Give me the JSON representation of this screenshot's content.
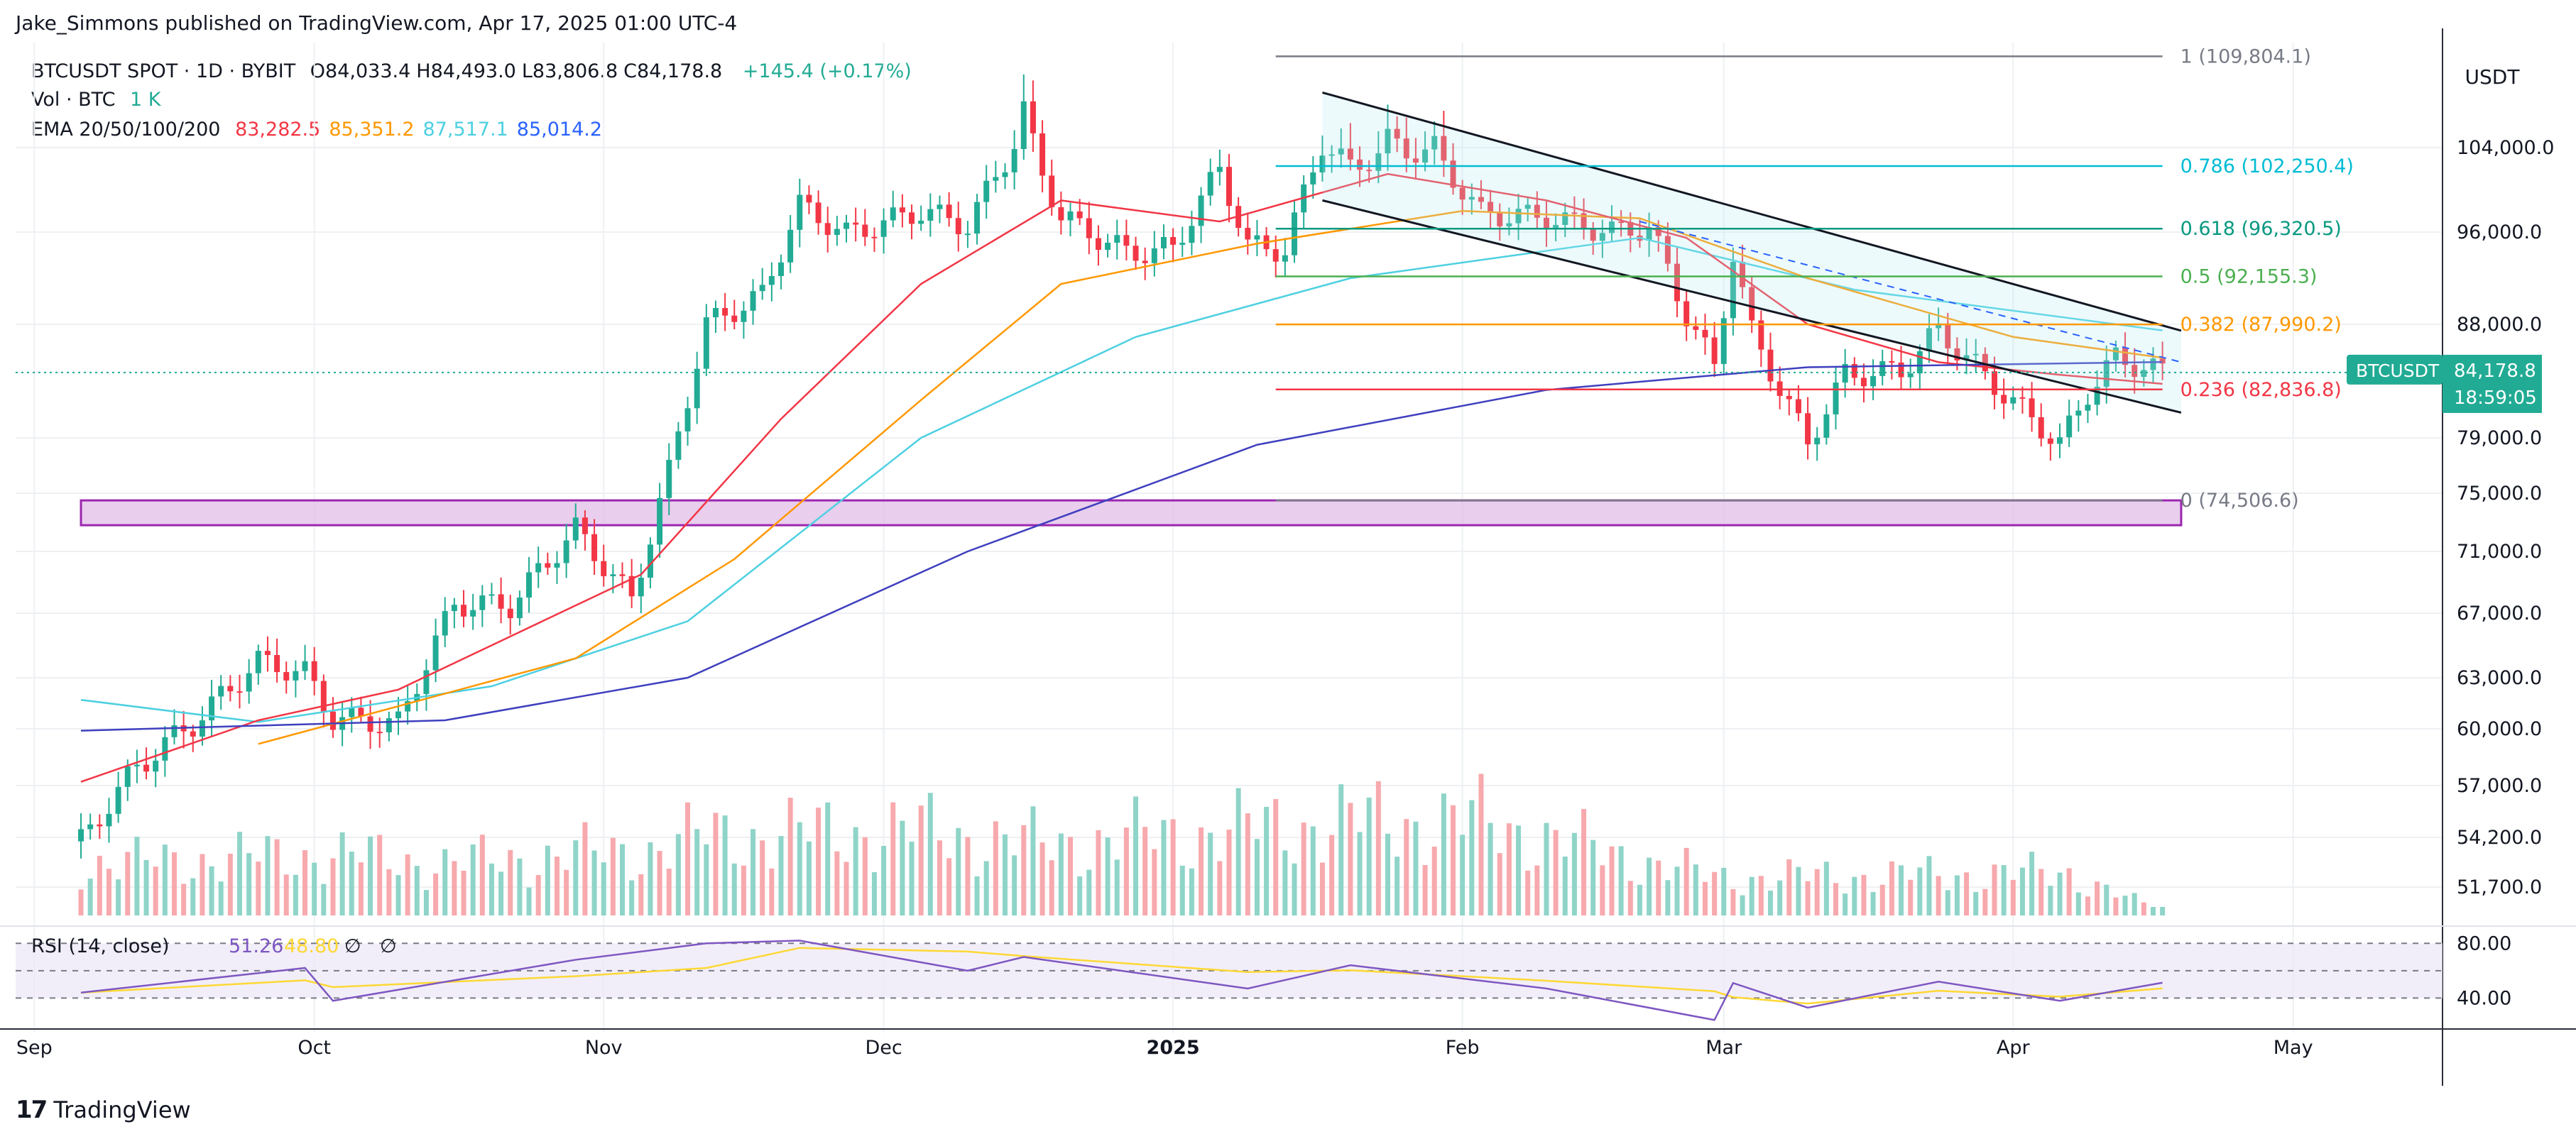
{
  "publisher": "Jake_Simmons published on TradingView.com, Apr 17, 2025 01:00 UTC-4",
  "brand": "TradingView",
  "header": {
    "symbol": "BTCUSDT SPOT · 1D · BYBIT",
    "ohlc": [
      {
        "label": "O",
        "value": "84,033.4"
      },
      {
        "label": "H",
        "value": "84,493.0"
      },
      {
        "label": "L",
        "value": "83,806.8"
      },
      {
        "label": "C",
        "value": "84,178.8"
      }
    ],
    "change": "+145.4 (+0.17%)",
    "volume_label": "Vol · BTC",
    "volume_value": "1 K",
    "ema_label": "EMA 20/50/100/200",
    "ema_values": [
      {
        "value": "83,282.5",
        "color": "#f23645"
      },
      {
        "value": "85,351.2",
        "color": "#ff9800"
      },
      {
        "value": "87,517.1",
        "color": "#4dd0e1"
      },
      {
        "value": "85,014.2",
        "color": "#2962ff"
      }
    ]
  },
  "currency": "USDT",
  "price_tag": {
    "symbol": "BTCUSDT",
    "price": "84,178.8",
    "countdown": "18:59:05",
    "color": "#22ab94"
  },
  "rsi": {
    "label": "RSI (14, close)",
    "value": "51.26",
    "ma_value": "48.80",
    "extra": [
      "∅",
      "∅"
    ],
    "levels": [
      "80.00",
      "40.00"
    ]
  },
  "colors": {
    "up": "#22ab94",
    "down": "#f23645",
    "up_vol": "#8fd4c8",
    "down_vol": "#f7a9ad",
    "grid": "#eef0f3"
  },
  "chart_data": {
    "type": "candlestick",
    "title": "BTCUSDT SPOT · 1D · BYBIT",
    "y_axis_ticks": [
      "104,000.0",
      "96,000.0",
      "88,000.0",
      "79,000.0",
      "75,000.0",
      "71,000.0",
      "67,000.0",
      "63,000.0",
      "60,000.0",
      "57,000.0",
      "54,200.0",
      "51,700.0"
    ],
    "y_tick_values": [
      104000,
      96000,
      88000,
      79000,
      75000,
      71000,
      67000,
      63000,
      60000,
      57000,
      54200,
      51700
    ],
    "x_axis_ticks": [
      "Sep",
      "Oct",
      "Nov",
      "Dec",
      "2025",
      "Feb",
      "Mar",
      "Apr",
      "May"
    ],
    "x_tick_dates": [
      "2024-09-01",
      "2024-10-01",
      "2024-11-01",
      "2024-12-01",
      "2025-01-01",
      "2025-02-01",
      "2025-03-01",
      "2025-04-01",
      "2025-05-01"
    ],
    "date_range": [
      "2024-09-06",
      "2025-04-17"
    ],
    "closes": [
      {
        "date": "2024-09-06",
        "close": 54000
      },
      {
        "date": "2024-09-12",
        "close": 58000
      },
      {
        "date": "2024-09-18",
        "close": 60300
      },
      {
        "date": "2024-09-25",
        "close": 64000
      },
      {
        "date": "2024-09-30",
        "close": 63300
      },
      {
        "date": "2024-10-03",
        "close": 60600
      },
      {
        "date": "2024-10-10",
        "close": 60300
      },
      {
        "date": "2024-10-16",
        "close": 67600
      },
      {
        "date": "2024-10-22",
        "close": 67500
      },
      {
        "date": "2024-10-29",
        "close": 72500
      },
      {
        "date": "2024-11-04",
        "close": 67800
      },
      {
        "date": "2024-11-08",
        "close": 76500
      },
      {
        "date": "2024-11-12",
        "close": 88000
      },
      {
        "date": "2024-11-18",
        "close": 90500
      },
      {
        "date": "2024-11-22",
        "close": 98500
      },
      {
        "date": "2024-11-27",
        "close": 95800
      },
      {
        "date": "2024-12-05",
        "close": 98000
      },
      {
        "date": "2024-12-10",
        "close": 96600
      },
      {
        "date": "2024-12-16",
        "close": 106000
      },
      {
        "date": "2024-12-20",
        "close": 97400
      },
      {
        "date": "2024-12-27",
        "close": 94200
      },
      {
        "date": "2025-01-01",
        "close": 94500
      },
      {
        "date": "2025-01-06",
        "close": 102000
      },
      {
        "date": "2025-01-09",
        "close": 94700
      },
      {
        "date": "2025-01-13",
        "close": 94500
      },
      {
        "date": "2025-01-17",
        "close": 104500
      },
      {
        "date": "2025-01-20",
        "close": 102000
      },
      {
        "date": "2025-01-24",
        "close": 104000
      },
      {
        "date": "2025-01-29",
        "close": 103500
      },
      {
        "date": "2025-02-03",
        "close": 97700
      },
      {
        "date": "2025-02-10",
        "close": 97400
      },
      {
        "date": "2025-02-17",
        "close": 96000
      },
      {
        "date": "2025-02-21",
        "close": 96500
      },
      {
        "date": "2025-02-25",
        "close": 88800
      },
      {
        "date": "2025-02-28",
        "close": 84500
      },
      {
        "date": "2025-03-02",
        "close": 94300
      },
      {
        "date": "2025-03-04",
        "close": 87300
      },
      {
        "date": "2025-03-10",
        "close": 78600
      },
      {
        "date": "2025-03-14",
        "close": 84000
      },
      {
        "date": "2025-03-20",
        "close": 84300
      },
      {
        "date": "2025-03-24",
        "close": 87500
      },
      {
        "date": "2025-03-31",
        "close": 82500
      },
      {
        "date": "2025-04-06",
        "close": 78500
      },
      {
        "date": "2025-04-09",
        "close": 82600
      },
      {
        "date": "2025-04-12",
        "close": 85300
      },
      {
        "date": "2025-04-17",
        "close": 84178.8
      }
    ],
    "ema_20": [
      {
        "date": "2024-09-06",
        "value": 57200
      },
      {
        "date": "2024-09-25",
        "value": 60500
      },
      {
        "date": "2024-10-10",
        "value": 62300
      },
      {
        "date": "2024-10-29",
        "value": 67500
      },
      {
        "date": "2024-11-05",
        "value": 69500
      },
      {
        "date": "2024-11-20",
        "value": 80500
      },
      {
        "date": "2024-12-05",
        "value": 91500
      },
      {
        "date": "2024-12-20",
        "value": 99000
      },
      {
        "date": "2025-01-06",
        "value": 97000
      },
      {
        "date": "2025-01-24",
        "value": 101500
      },
      {
        "date": "2025-02-10",
        "value": 99000
      },
      {
        "date": "2025-02-25",
        "value": 95500
      },
      {
        "date": "2025-03-10",
        "value": 88000
      },
      {
        "date": "2025-03-24",
        "value": 85000
      },
      {
        "date": "2025-04-06",
        "value": 84000
      },
      {
        "date": "2025-04-17",
        "value": 83282.5
      }
    ],
    "ema_50": [
      {
        "date": "2024-09-25",
        "value": 59200
      },
      {
        "date": "2024-10-29",
        "value": 64200
      },
      {
        "date": "2024-11-15",
        "value": 70500
      },
      {
        "date": "2024-12-05",
        "value": 82000
      },
      {
        "date": "2024-12-20",
        "value": 91500
      },
      {
        "date": "2025-01-10",
        "value": 95000
      },
      {
        "date": "2025-02-01",
        "value": 98000
      },
      {
        "date": "2025-02-20",
        "value": 97300
      },
      {
        "date": "2025-03-10",
        "value": 92000
      },
      {
        "date": "2025-04-01",
        "value": 87000
      },
      {
        "date": "2025-04-17",
        "value": 85351.2
      }
    ],
    "ema_100": [
      {
        "date": "2024-09-06",
        "value": 61700
      },
      {
        "date": "2024-09-25",
        "value": 60400
      },
      {
        "date": "2024-10-20",
        "value": 62500
      },
      {
        "date": "2024-11-10",
        "value": 66500
      },
      {
        "date": "2024-12-05",
        "value": 79000
      },
      {
        "date": "2024-12-28",
        "value": 87000
      },
      {
        "date": "2025-01-20",
        "value": 92000
      },
      {
        "date": "2025-02-20",
        "value": 95500
      },
      {
        "date": "2025-03-15",
        "value": 91000
      },
      {
        "date": "2025-04-17",
        "value": 87517.1
      }
    ],
    "ema_200": [
      {
        "date": "2024-09-06",
        "value": 59900
      },
      {
        "date": "2024-10-15",
        "value": 60500
      },
      {
        "date": "2024-11-10",
        "value": 63000
      },
      {
        "date": "2024-12-10",
        "value": 71000
      },
      {
        "date": "2025-01-10",
        "value": 78500
      },
      {
        "date": "2025-02-10",
        "value": 82800
      },
      {
        "date": "2025-03-10",
        "value": 84600
      },
      {
        "date": "2025-04-17",
        "value": 85014.2
      }
    ],
    "fibonacci": {
      "start_date": "2025-01-12",
      "end_date": "2025-04-17",
      "levels": [
        {
          "ratio": "1",
          "price": 109804.1,
          "label": "1 (109,804.1)",
          "color": "#787b86"
        },
        {
          "ratio": "0.786",
          "price": 102250.4,
          "label": "0.786 (102,250.4)",
          "color": "#00bcd4"
        },
        {
          "ratio": "0.618",
          "price": 96320.5,
          "label": "0.618 (96,320.5)",
          "color": "#089981"
        },
        {
          "ratio": "0.5",
          "price": 92155.3,
          "label": "0.5 (92,155.3)",
          "color": "#4caf50"
        },
        {
          "ratio": "0.382",
          "price": 87990.2,
          "label": "0.382 (87,990.2)",
          "color": "#ff9800"
        },
        {
          "ratio": "0.236",
          "price": 82836.8,
          "label": "0.236 (82,836.8)",
          "color": "#f23645"
        },
        {
          "ratio": "0",
          "price": 74506.6,
          "label": "0 (74,506.6)",
          "color": "#787b86"
        }
      ]
    },
    "descending_channel": {
      "upper": [
        {
          "date": "2025-01-17",
          "price": 107500
        },
        {
          "date": "2025-04-19",
          "price": 87500
        }
      ],
      "lower": [
        {
          "date": "2025-01-17",
          "price": 99000
        },
        {
          "date": "2025-04-19",
          "price": 81000
        }
      ],
      "dashed_trend": [
        {
          "date": "2025-02-20",
          "price": 97000
        },
        {
          "date": "2025-04-19",
          "price": 85000
        }
      ]
    },
    "support_zone": {
      "from_date": "2024-09-06",
      "to_date": "2025-04-19",
      "low": 72800,
      "high": 74506.6,
      "color": "#9c27b0"
    },
    "last_price": 84178.8,
    "volume": [
      {
        "date": "2024-09-10",
        "value": 0.55,
        "dir": "down"
      },
      {
        "date": "2024-09-20",
        "value": 0.6,
        "dir": "up"
      },
      {
        "date": "2024-10-03",
        "value": 0.65,
        "dir": "down"
      },
      {
        "date": "2024-10-15",
        "value": 0.55,
        "dir": "up"
      },
      {
        "date": "2024-11-06",
        "value": 0.7,
        "dir": "up"
      },
      {
        "date": "2024-11-12",
        "value": 0.85,
        "dir": "up"
      },
      {
        "date": "2024-12-05",
        "value": 0.9,
        "dir": "down"
      },
      {
        "date": "2024-12-18",
        "value": 0.75,
        "dir": "down"
      },
      {
        "date": "2025-01-20",
        "value": 1.0,
        "dir": "up"
      },
      {
        "date": "2025-02-03",
        "value": 1.0,
        "dir": "up"
      },
      {
        "date": "2025-02-28",
        "value": 0.4,
        "dir": "down"
      },
      {
        "date": "2025-04-07",
        "value": 0.45,
        "dir": "up"
      },
      {
        "date": "2025-04-17",
        "value": 0.03,
        "dir": "up"
      }
    ],
    "rsi_series": [
      {
        "date": "2024-09-06",
        "value": 44
      },
      {
        "date": "2024-09-30",
        "value": 62
      },
      {
        "date": "2024-10-03",
        "value": 38
      },
      {
        "date": "2024-10-29",
        "value": 68
      },
      {
        "date": "2024-11-12",
        "value": 80
      },
      {
        "date": "2024-11-22",
        "value": 82
      },
      {
        "date": "2024-12-10",
        "value": 60
      },
      {
        "date": "2024-12-16",
        "value": 70
      },
      {
        "date": "2025-01-09",
        "value": 47
      },
      {
        "date": "2025-01-20",
        "value": 64
      },
      {
        "date": "2025-02-10",
        "value": 47
      },
      {
        "date": "2025-02-28",
        "value": 24
      },
      {
        "date": "2025-03-02",
        "value": 51
      },
      {
        "date": "2025-03-10",
        "value": 33
      },
      {
        "date": "2025-03-24",
        "value": 52
      },
      {
        "date": "2025-04-06",
        "value": 38
      },
      {
        "date": "2025-04-17",
        "value": 51.26
      }
    ],
    "rsi_ylim": [
      20,
      90
    ]
  }
}
